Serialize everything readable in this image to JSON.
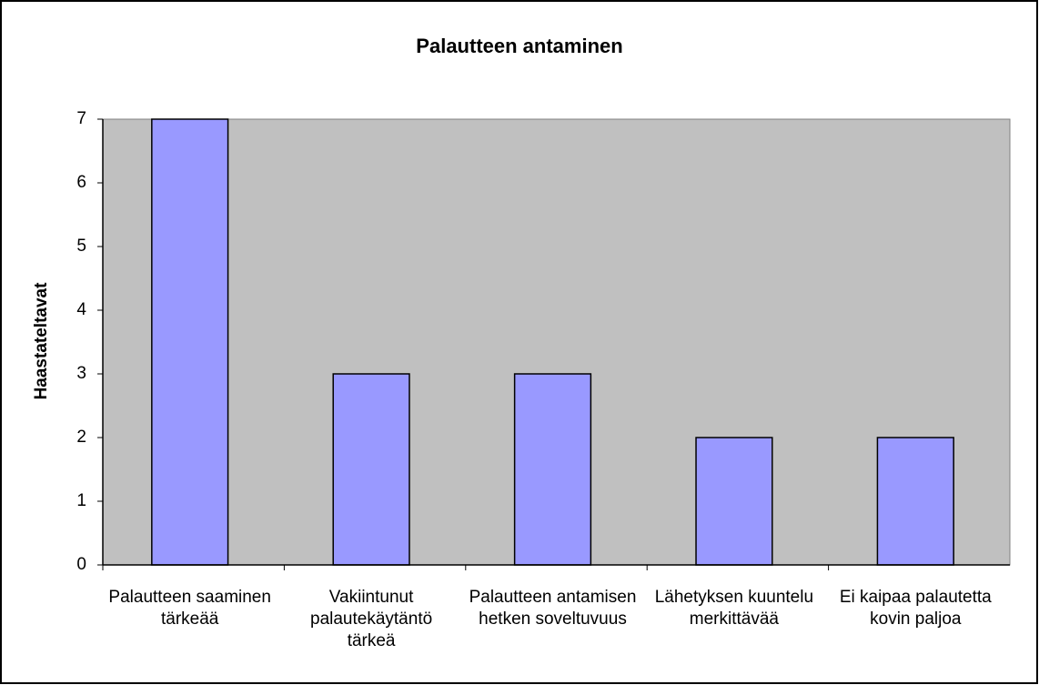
{
  "chart_data": {
    "type": "bar",
    "title": "Palautteen antaminen",
    "y_label": "Haastateltavat",
    "categories": [
      "Palautteen saaminen tärkeää",
      "Vakiintunut palautekäytäntö tärkeä",
      "Palautteen antamisen hetken soveltuvuus",
      "Lähetyksen kuuntelu merkittävää",
      "Ei kaipaa palautetta kovin paljoa"
    ],
    "values": [
      7,
      3,
      3,
      2,
      2
    ],
    "color": "#9999ff",
    "ylim": [
      0,
      7
    ],
    "yticks": [
      0,
      1,
      2,
      3,
      4,
      5,
      6,
      7
    ],
    "grid": false
  }
}
